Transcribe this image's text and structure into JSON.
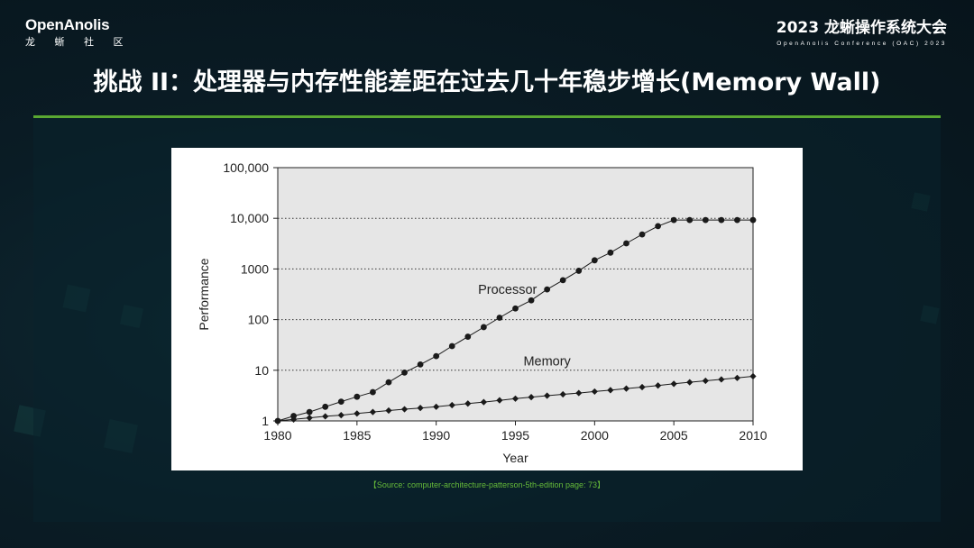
{
  "brand": {
    "name": "OpenAnolis",
    "sub": "龙 蜥 社 区"
  },
  "conference": {
    "title": "2023 龙蜥操作系统大会",
    "subtitle": "OpenAnolis Conference (OAC) 2023"
  },
  "slide": {
    "title": "挑战 II：处理器与内存性能差距在过去几十年稳步增长(Memory Wall)"
  },
  "source": "【Source: computer-architecture-patterson-5th-edition page: 73】",
  "colors": {
    "accent": "#5aa832",
    "plot_bg": "#e6e6e6",
    "series": "#1a1a1a"
  },
  "chart_data": {
    "type": "line",
    "xlabel": "Year",
    "ylabel": "Performance",
    "xlim": [
      1980,
      2010
    ],
    "ylim": [
      1,
      100000
    ],
    "yscale": "log",
    "x_ticks": [
      "1980",
      "1985",
      "1990",
      "1995",
      "2000",
      "2005",
      "2010"
    ],
    "y_ticks": [
      "1",
      "10",
      "100",
      "1000",
      "10,000",
      "100,000"
    ],
    "grid": "horizontal dotted",
    "series": [
      {
        "name": "Processor",
        "marker": "circle",
        "x": [
          1980,
          1981,
          1982,
          1983,
          1984,
          1985,
          1986,
          1987,
          1988,
          1989,
          1990,
          1991,
          1992,
          1993,
          1994,
          1995,
          1996,
          1997,
          1998,
          1999,
          2000,
          2001,
          2002,
          2003,
          2004,
          2005,
          2006,
          2007,
          2008,
          2009,
          2010
        ],
        "values": [
          1,
          1.25,
          1.5,
          1.9,
          2.4,
          3,
          3.7,
          5.8,
          9,
          13,
          19,
          30,
          46,
          71,
          109,
          166,
          240,
          394,
          600,
          920,
          1480,
          2100,
          3200,
          4800,
          7000,
          9250,
          9250,
          9250,
          9250,
          9250,
          9250
        ]
      },
      {
        "name": "Memory",
        "marker": "diamond",
        "x": [
          1980,
          1981,
          1982,
          1983,
          1984,
          1985,
          1986,
          1987,
          1988,
          1989,
          1990,
          1991,
          1992,
          1993,
          1994,
          1995,
          1996,
          1997,
          1998,
          1999,
          2000,
          2001,
          2002,
          2003,
          2004,
          2005,
          2006,
          2007,
          2008,
          2009,
          2010
        ],
        "values": [
          1,
          1.07,
          1.15,
          1.23,
          1.3,
          1.4,
          1.5,
          1.6,
          1.7,
          1.8,
          1.9,
          2.05,
          2.2,
          2.35,
          2.55,
          2.75,
          2.95,
          3.15,
          3.35,
          3.55,
          3.8,
          4.05,
          4.35,
          4.65,
          5,
          5.4,
          5.8,
          6.2,
          6.6,
          7.05,
          7.6
        ]
      }
    ]
  }
}
